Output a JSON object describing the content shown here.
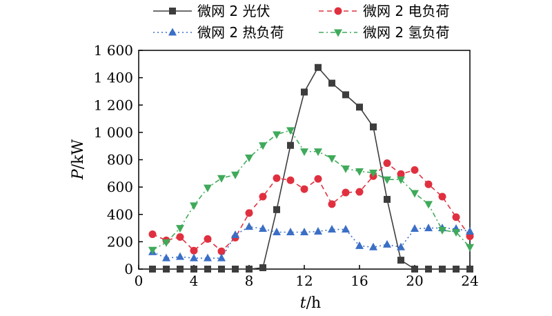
{
  "chart_data": {
    "type": "line",
    "xlabel_italic": "t",
    "xlabel_unit": "/h",
    "ylabel_italic": "P",
    "ylabel_unit": "/kW",
    "xlim": [
      0,
      24
    ],
    "ylim": [
      0,
      1600
    ],
    "xticks": [
      0,
      4,
      8,
      12,
      16,
      20,
      24
    ],
    "xtick_labels": [
      "0",
      "4",
      "8",
      "12",
      "16",
      "20",
      "24"
    ],
    "yticks": [
      0,
      200,
      400,
      600,
      800,
      1000,
      1200,
      1400,
      1600
    ],
    "ytick_labels": [
      "0",
      "200",
      "400",
      "600",
      "800",
      "1 000",
      "1 200",
      "1 400",
      "1 600"
    ],
    "grid": false,
    "legend_placement": "top",
    "x": [
      1,
      2,
      3,
      4,
      5,
      6,
      7,
      8,
      9,
      10,
      11,
      12,
      13,
      14,
      15,
      16,
      17,
      18,
      19,
      20,
      21,
      22,
      23,
      24
    ],
    "series": [
      {
        "name": "微网 2 光伏",
        "color": "#3d3d3d",
        "marker": "square",
        "dash": "solid",
        "values": [
          0,
          0,
          0,
          0,
          0,
          0,
          0,
          0,
          10,
          435,
          905,
          1295,
          1475,
          1360,
          1275,
          1185,
          1040,
          510,
          65,
          0,
          0,
          0,
          0,
          0
        ]
      },
      {
        "name": "微网 2 电负荷",
        "color": "#e0303f",
        "marker": "circle",
        "dash": "dash",
        "values": [
          255,
          210,
          235,
          135,
          220,
          130,
          230,
          410,
          530,
          665,
          650,
          585,
          660,
          475,
          560,
          565,
          680,
          775,
          695,
          725,
          620,
          530,
          380,
          240
        ]
      },
      {
        "name": "微网 2 热负荷",
        "color": "#3b6fc6",
        "marker": "triangle-up",
        "dash": "dot",
        "values": [
          125,
          80,
          90,
          80,
          80,
          80,
          250,
          310,
          295,
          270,
          270,
          270,
          275,
          290,
          290,
          170,
          160,
          180,
          160,
          295,
          300,
          300,
          295,
          275
        ]
      },
      {
        "name": "微网 2 氢负荷",
        "color": "#3faa5a",
        "marker": "triangle-down",
        "dash": "dashdot",
        "values": [
          140,
          195,
          300,
          465,
          595,
          665,
          690,
          815,
          905,
          985,
          1015,
          860,
          860,
          810,
          735,
          715,
          705,
          655,
          655,
          555,
          475,
          285,
          270,
          160
        ]
      }
    ]
  }
}
